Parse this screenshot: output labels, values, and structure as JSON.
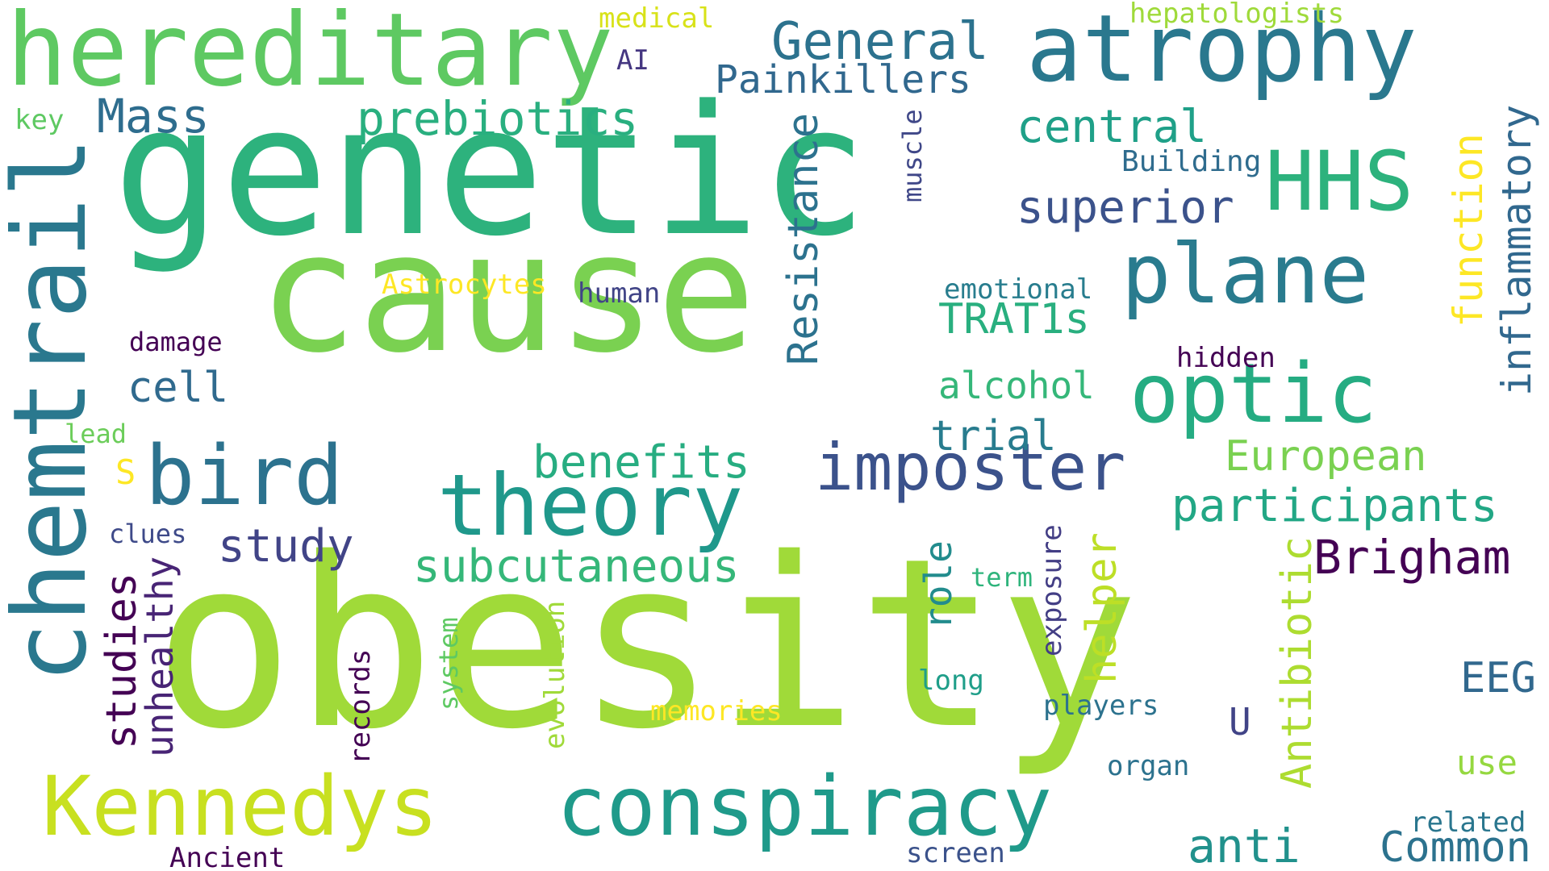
{
  "words": [
    {
      "text": "obesity",
      "color": "#a0da39",
      "rotated": false
    },
    {
      "text": "genetic",
      "color": "#2db27d",
      "rotated": false
    },
    {
      "text": "cause",
      "color": "#7ad151",
      "rotated": false
    },
    {
      "text": "hereditary",
      "color": "#5ec962",
      "rotated": false
    },
    {
      "text": "atrophy",
      "color": "#2a788e",
      "rotated": false
    },
    {
      "text": "chemtrail",
      "color": "#2a788e",
      "rotated": true
    },
    {
      "text": "theory",
      "color": "#1f988b",
      "rotated": false
    },
    {
      "text": "bird",
      "color": "#2c728e",
      "rotated": false
    },
    {
      "text": "optic",
      "color": "#25ac82",
      "rotated": false
    },
    {
      "text": "plane",
      "color": "#297b8e",
      "rotated": false
    },
    {
      "text": "HHS",
      "color": "#2db27d",
      "rotated": false
    },
    {
      "text": "Kennedys",
      "color": "#c8e020",
      "rotated": false
    },
    {
      "text": "conspiracy",
      "color": "#1f9a8a",
      "rotated": false
    },
    {
      "text": "imposter",
      "color": "#3b528b",
      "rotated": false
    },
    {
      "text": "General",
      "color": "#2c728e",
      "rotated": false
    },
    {
      "text": "Painkillers",
      "color": "#31688e",
      "rotated": false
    },
    {
      "text": "prebiotics",
      "color": "#29af7f",
      "rotated": false
    },
    {
      "text": "Mass",
      "color": "#2e6d8e",
      "rotated": false
    },
    {
      "text": "central",
      "color": "#1fa088",
      "rotated": false
    },
    {
      "text": "superior",
      "color": "#3b528b",
      "rotated": false
    },
    {
      "text": "Resistance",
      "color": "#2c728e",
      "rotated": true
    },
    {
      "text": "muscle",
      "color": "#3f4788",
      "rotated": true
    },
    {
      "text": "inflammatory",
      "color": "#31688e",
      "rotated": true
    },
    {
      "text": "function",
      "color": "#fde725",
      "rotated": true
    },
    {
      "text": "Building",
      "color": "#2f6c8e",
      "rotated": false
    },
    {
      "text": "participants",
      "color": "#22a785",
      "rotated": false
    },
    {
      "text": "benefits",
      "color": "#27ad81",
      "rotated": false
    },
    {
      "text": "study",
      "color": "#414487",
      "rotated": false
    },
    {
      "text": "studies",
      "color": "#440154",
      "rotated": true
    },
    {
      "text": "unhealthy",
      "color": "#482475",
      "rotated": true
    },
    {
      "text": "subcutaneous",
      "color": "#35b779",
      "rotated": false
    },
    {
      "text": "Brigham",
      "color": "#440154",
      "rotated": false
    },
    {
      "text": "Antibiotic",
      "color": "#addc30",
      "rotated": true
    },
    {
      "text": "European",
      "color": "#7ad151",
      "rotated": false
    },
    {
      "text": "TRAT1s",
      "color": "#29af7f",
      "rotated": false
    },
    {
      "text": "alcohol",
      "color": "#35b779",
      "rotated": false
    },
    {
      "text": "trial",
      "color": "#287c8e",
      "rotated": false
    },
    {
      "text": "cell",
      "color": "#306a8e",
      "rotated": false
    },
    {
      "text": "helper",
      "color": "#bddf26",
      "rotated": true
    },
    {
      "text": "role",
      "color": "#228c8d",
      "rotated": true
    },
    {
      "text": "EEG",
      "color": "#31688e",
      "rotated": false
    },
    {
      "text": "anti",
      "color": "#21918c",
      "rotated": false
    },
    {
      "text": "Common",
      "color": "#2c728e",
      "rotated": false
    },
    {
      "text": "use",
      "color": "#95d840",
      "rotated": false
    },
    {
      "text": "U",
      "color": "#414487",
      "rotated": false
    },
    {
      "text": "S",
      "color": "#fde725",
      "rotated": false
    },
    {
      "text": "medical",
      "color": "#d8e219",
      "rotated": false
    },
    {
      "text": "AI",
      "color": "#453781",
      "rotated": false
    },
    {
      "text": "hepatologists",
      "color": "#9fda3a",
      "rotated": false
    },
    {
      "text": "key",
      "color": "#5ec962",
      "rotated": false
    },
    {
      "text": "Astrocytes",
      "color": "#fde725",
      "rotated": false
    },
    {
      "text": "human",
      "color": "#414487",
      "rotated": false
    },
    {
      "text": "damage",
      "color": "#440154",
      "rotated": false
    },
    {
      "text": "emotional",
      "color": "#287d8e",
      "rotated": false
    },
    {
      "text": "hidden",
      "color": "#440154",
      "rotated": false
    },
    {
      "text": "lead",
      "color": "#6ccd5a",
      "rotated": false
    },
    {
      "text": "clues",
      "color": "#3e4a89",
      "rotated": false
    },
    {
      "text": "term",
      "color": "#2fb47c",
      "rotated": false
    },
    {
      "text": "exposure",
      "color": "#433e85",
      "rotated": true
    },
    {
      "text": "long",
      "color": "#1f9e89",
      "rotated": false
    },
    {
      "text": "players",
      "color": "#2c728e",
      "rotated": false
    },
    {
      "text": "system",
      "color": "#5ec962",
      "rotated": true
    },
    {
      "text": "evolution",
      "color": "#a0da39",
      "rotated": true
    },
    {
      "text": "memories",
      "color": "#fde725",
      "rotated": false
    },
    {
      "text": "records",
      "color": "#440154",
      "rotated": true
    },
    {
      "text": "organ",
      "color": "#2c728e",
      "rotated": false
    },
    {
      "text": "related",
      "color": "#2a768e",
      "rotated": false
    },
    {
      "text": "screen",
      "color": "#3b528b",
      "rotated": false
    },
    {
      "text": "Ancient",
      "color": "#440154",
      "rotated": false
    }
  ]
}
